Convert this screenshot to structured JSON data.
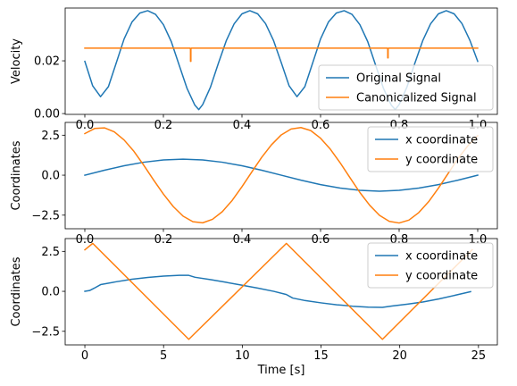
{
  "chart_data": [
    {
      "type": "line",
      "ylabel": "Velocity",
      "xlim": [
        -0.05,
        1.05
      ],
      "ylim": [
        -0.0003,
        0.04
      ],
      "xticks": [
        0.0,
        0.2,
        0.4,
        0.6,
        0.8,
        1.0
      ],
      "xtick_labels": [
        "0.0",
        "0.2",
        "0.4",
        "0.6",
        "0.8",
        "1.0"
      ],
      "yticks": [
        0.0,
        0.02
      ],
      "ytick_labels": [
        "0.00",
        "0.02"
      ],
      "legend_position": "lower right",
      "series": [
        {
          "name": "Original Signal",
          "color": "#1f77b4",
          "x": [
            0.0,
            0.02,
            0.04,
            0.06,
            0.08,
            0.1,
            0.12,
            0.14,
            0.16,
            0.18,
            0.2,
            0.22,
            0.24,
            0.26,
            0.28,
            0.29,
            0.3,
            0.32,
            0.34,
            0.36,
            0.38,
            0.4,
            0.42,
            0.44,
            0.46,
            0.48,
            0.5,
            0.52,
            0.54,
            0.56,
            0.58,
            0.6,
            0.62,
            0.64,
            0.66,
            0.68,
            0.7,
            0.72,
            0.74,
            0.76,
            0.78,
            0.79,
            0.8,
            0.82,
            0.84,
            0.86,
            0.88,
            0.9,
            0.92,
            0.94,
            0.96,
            0.98,
            1.0
          ],
          "y": [
            0.0198,
            0.0105,
            0.0064,
            0.0102,
            0.0192,
            0.0283,
            0.0347,
            0.0381,
            0.039,
            0.0376,
            0.0337,
            0.0273,
            0.0184,
            0.0096,
            0.0032,
            0.0015,
            0.0034,
            0.0101,
            0.0191,
            0.0276,
            0.034,
            0.0378,
            0.039,
            0.0378,
            0.0341,
            0.0278,
            0.0193,
            0.0105,
            0.0064,
            0.0102,
            0.0192,
            0.0283,
            0.0347,
            0.0381,
            0.039,
            0.0376,
            0.0337,
            0.0273,
            0.0184,
            0.0096,
            0.0032,
            0.0015,
            0.0034,
            0.0101,
            0.0191,
            0.0276,
            0.034,
            0.0378,
            0.039,
            0.0378,
            0.0341,
            0.0278,
            0.0198
          ]
        },
        {
          "name": "Canonicalized Signal",
          "color": "#ff7f0e",
          "x": [
            0.0,
            0.268,
            0.269,
            0.269,
            0.27,
            0.27,
            0.271,
            0.77,
            0.771,
            0.771,
            0.772,
            0.772,
            0.773,
            1.0
          ],
          "y": [
            0.0248,
            0.0248,
            0.0244,
            0.0198,
            0.0198,
            0.0244,
            0.0248,
            0.0248,
            0.0244,
            0.0211,
            0.0211,
            0.0244,
            0.0248,
            0.0248
          ]
        }
      ]
    },
    {
      "type": "line",
      "ylabel": "Coordinates",
      "xlim": [
        -0.05,
        1.05
      ],
      "ylim": [
        -3.35,
        3.3
      ],
      "xticks": [
        0.0,
        0.2,
        0.4,
        0.6,
        0.8,
        1.0
      ],
      "xtick_labels": [
        "0.0",
        "0.2",
        "0.4",
        "0.6",
        "0.8",
        "1.0"
      ],
      "yticks": [
        -2.5,
        0.0,
        2.5
      ],
      "ytick_labels": [
        "−2.5",
        "0.0",
        "2.5"
      ],
      "legend_position": "upper right",
      "series": [
        {
          "name": "x coordinate",
          "color": "#1f77b4",
          "x": [
            0.0,
            0.05,
            0.1,
            0.15,
            0.2,
            0.25,
            0.3,
            0.35,
            0.4,
            0.45,
            0.5,
            0.55,
            0.6,
            0.65,
            0.7,
            0.75,
            0.8,
            0.85,
            0.9,
            0.95,
            1.0
          ],
          "y": [
            0.0,
            0.31,
            0.59,
            0.81,
            0.95,
            1.0,
            0.95,
            0.81,
            0.59,
            0.31,
            0.0,
            -0.31,
            -0.59,
            -0.81,
            -0.95,
            -1.0,
            -0.95,
            -0.81,
            -0.59,
            -0.31,
            0.0
          ]
        },
        {
          "name": "y coordinate",
          "color": "#ff7f0e",
          "x": [
            0.0,
            0.025,
            0.05,
            0.075,
            0.1,
            0.125,
            0.15,
            0.175,
            0.2,
            0.225,
            0.25,
            0.275,
            0.3,
            0.325,
            0.35,
            0.375,
            0.4,
            0.425,
            0.45,
            0.475,
            0.5,
            0.525,
            0.55,
            0.575,
            0.6,
            0.625,
            0.65,
            0.675,
            0.7,
            0.725,
            0.75,
            0.775,
            0.8,
            0.825,
            0.85,
            0.875,
            0.9,
            0.925,
            0.95,
            0.975,
            1.0
          ],
          "y": [
            2.6,
            2.92,
            2.96,
            2.71,
            2.2,
            1.49,
            0.62,
            -0.3,
            -1.18,
            -1.96,
            -2.56,
            -2.91,
            -2.98,
            -2.76,
            -2.28,
            -1.58,
            -0.72,
            0.2,
            1.11,
            1.9,
            2.52,
            2.89,
            2.98,
            2.79,
            2.31,
            1.62,
            0.77,
            -0.16,
            -1.08,
            -1.88,
            -2.51,
            -2.89,
            -2.99,
            -2.81,
            -2.34,
            -1.66,
            -0.81,
            0.12,
            1.04,
            1.84,
            2.47
          ]
        }
      ]
    },
    {
      "type": "line",
      "xlabel": "Time [s]",
      "ylabel": "Coordinates",
      "xlim": [
        -1.25,
        26.2
      ],
      "ylim": [
        -3.35,
        3.3
      ],
      "xticks": [
        0,
        5,
        10,
        15,
        20,
        25
      ],
      "xtick_labels": [
        "0",
        "5",
        "10",
        "15",
        "20",
        "25"
      ],
      "yticks": [
        -2.5,
        0.0,
        2.5
      ],
      "ytick_labels": [
        "−2.5",
        "0.0",
        "2.5"
      ],
      "legend_position": "upper right",
      "series": [
        {
          "name": "x coordinate",
          "color": "#1f77b4",
          "x": [
            0.0,
            0.3,
            0.6,
            1.0,
            2.0,
            3.0,
            4.0,
            5.0,
            6.0,
            6.6,
            7.0,
            8.0,
            9.0,
            10.0,
            11.0,
            12.0,
            12.8,
            13.2,
            14.0,
            15.0,
            16.0,
            17.0,
            18.0,
            18.9,
            19.5,
            20.5,
            21.5,
            22.5,
            23.5,
            24.5
          ],
          "y": [
            0.0,
            0.05,
            0.2,
            0.42,
            0.6,
            0.76,
            0.87,
            0.95,
            1.0,
            1.0,
            0.88,
            0.73,
            0.56,
            0.38,
            0.2,
            0.0,
            -0.2,
            -0.42,
            -0.58,
            -0.72,
            -0.84,
            -0.93,
            -0.99,
            -1.0,
            -0.92,
            -0.8,
            -0.66,
            -0.47,
            -0.25,
            -0.02
          ]
        },
        {
          "name": "y coordinate",
          "color": "#ff7f0e",
          "x": [
            0.0,
            0.5,
            6.6,
            12.8,
            18.9,
            24.6
          ],
          "y": [
            2.6,
            3.0,
            -3.0,
            3.0,
            -3.0,
            2.6
          ]
        }
      ]
    }
  ]
}
